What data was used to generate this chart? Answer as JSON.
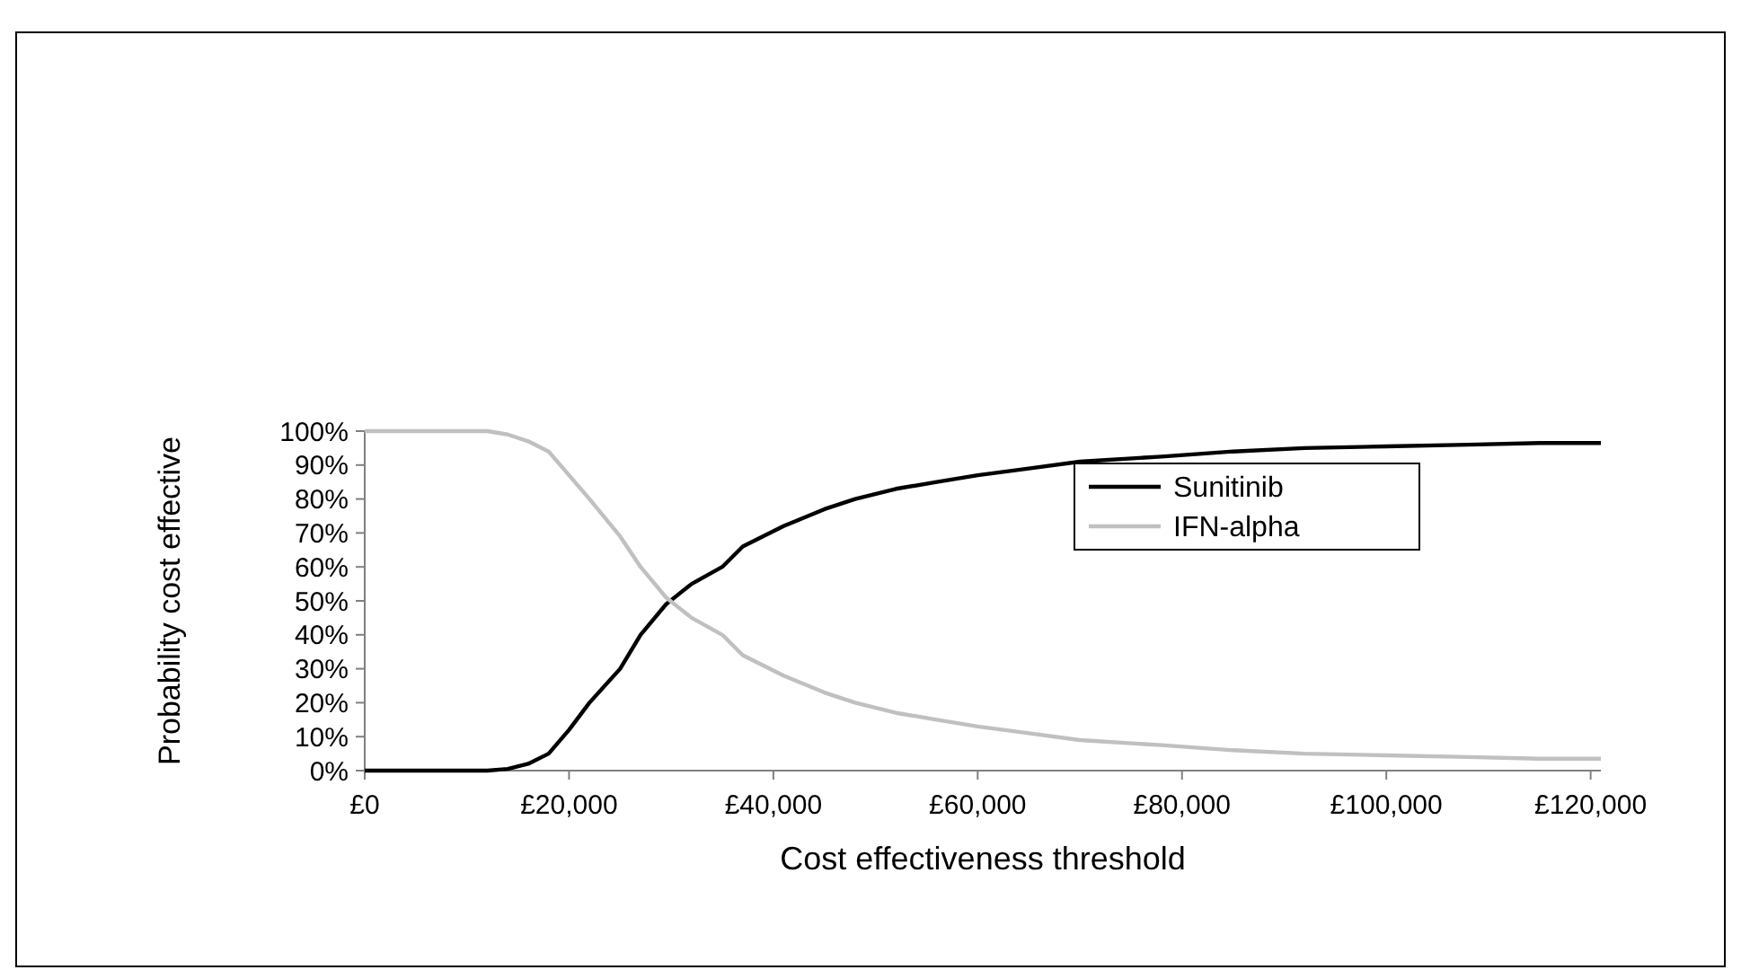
{
  "chart_data": {
    "type": "line",
    "xlabel": "Cost effectiveness threshold",
    "ylabel": "Probability cost effective",
    "xlim": [
      0,
      121000
    ],
    "ylim": [
      0,
      100
    ],
    "xticks": [
      {
        "value": 0,
        "label": "£0"
      },
      {
        "value": 20000,
        "label": "£20,000"
      },
      {
        "value": 40000,
        "label": "£40,000"
      },
      {
        "value": 60000,
        "label": "£60,000"
      },
      {
        "value": 80000,
        "label": "£80,000"
      },
      {
        "value": 100000,
        "label": "£100,000"
      },
      {
        "value": 120000,
        "label": "£120,000"
      }
    ],
    "yticks": [
      {
        "value": 0,
        "label": "0%"
      },
      {
        "value": 10,
        "label": "10%"
      },
      {
        "value": 20,
        "label": "20%"
      },
      {
        "value": 30,
        "label": "30%"
      },
      {
        "value": 40,
        "label": "40%"
      },
      {
        "value": 50,
        "label": "50%"
      },
      {
        "value": 60,
        "label": "60%"
      },
      {
        "value": 70,
        "label": "70%"
      },
      {
        "value": 80,
        "label": "80%"
      },
      {
        "value": 90,
        "label": "90%"
      },
      {
        "value": 100,
        "label": "100%"
      }
    ],
    "x": [
      0,
      12000,
      14000,
      16000,
      18000,
      20000,
      22000,
      25000,
      27000,
      29500,
      32000,
      35000,
      37000,
      41000,
      45000,
      48000,
      52000,
      56000,
      60000,
      65000,
      70000,
      78000,
      85000,
      92000,
      100000,
      108000,
      115000,
      121000
    ],
    "grid": false,
    "legend": "right",
    "line_style": "solid",
    "marker": "none",
    "series": [
      {
        "name": "Sunitinib",
        "color": "#000000",
        "values": [
          0,
          0,
          0.5,
          2,
          5,
          12,
          20,
          30,
          40,
          49,
          55,
          60,
          66,
          72,
          77,
          80,
          83,
          85,
          87,
          89,
          91,
          92.5,
          94,
          95,
          95.5,
          96,
          96.5,
          96.5
        ]
      },
      {
        "name": "IFN-alpha",
        "color": "#c0c0c0",
        "values": [
          100,
          100,
          99,
          97,
          94,
          87,
          80,
          69,
          60,
          51,
          45,
          40,
          34,
          28,
          23,
          20,
          17,
          15,
          13,
          11,
          9,
          7.5,
          6,
          5,
          4.5,
          4,
          3.5,
          3.5
        ]
      }
    ]
  }
}
